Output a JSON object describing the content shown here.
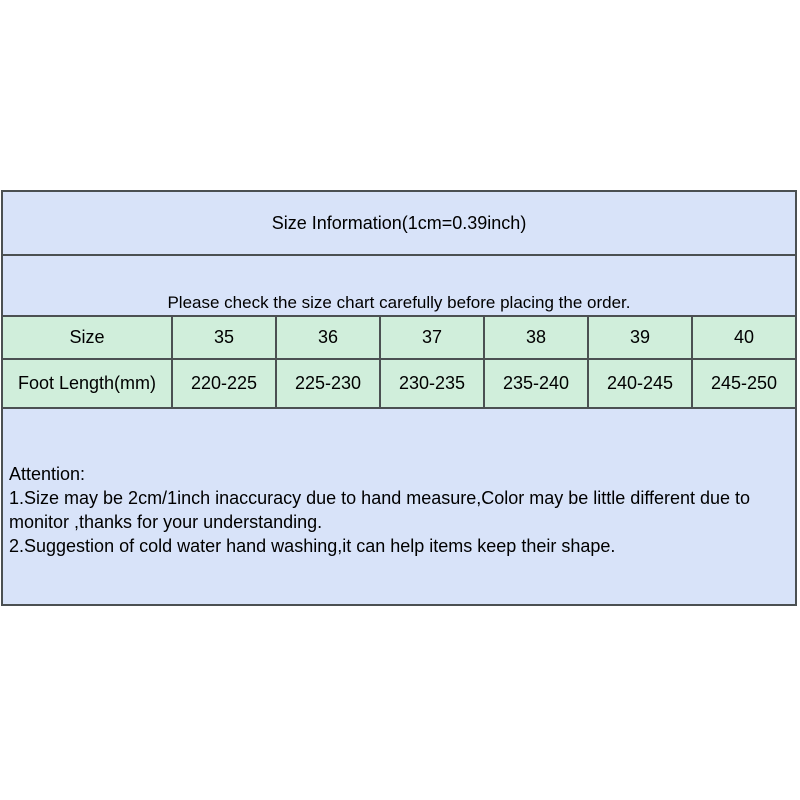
{
  "header": {
    "title": "Size Information(1cm=0.39inch)",
    "notice": "Please check the size chart carefully before placing the order."
  },
  "size_chart": {
    "size_label": "Size",
    "foot_label": "Foot Length(mm)",
    "sizes": [
      "35",
      "36",
      "37",
      "38",
      "39",
      "40"
    ],
    "foot_lengths": [
      "220-225",
      "225-230",
      "230-235",
      "235-240",
      "240-245",
      "245-250"
    ]
  },
  "attention": {
    "heading": "Attention:",
    "item1": "1.Size may be 2cm/1inch inaccuracy due to hand measure,Color may be little different due to monitor ,thanks for your understanding.",
    "item2": "2.Suggestion of cold water hand washing,it can help items keep their shape."
  },
  "colors": {
    "blue_bg": "#d8e3f9",
    "green_bg": "#d0eedb",
    "border": "#4b5052",
    "text": "#000000",
    "page_bg": "#ffffff"
  },
  "chart_data": {
    "type": "table",
    "columns": [
      "Size",
      "35",
      "36",
      "37",
      "38",
      "39",
      "40"
    ],
    "rows": [
      [
        "Foot Length(mm)",
        "220-225",
        "225-230",
        "230-235",
        "235-240",
        "240-245",
        "245-250"
      ]
    ],
    "title": "Size Information(1cm=0.39inch)"
  }
}
